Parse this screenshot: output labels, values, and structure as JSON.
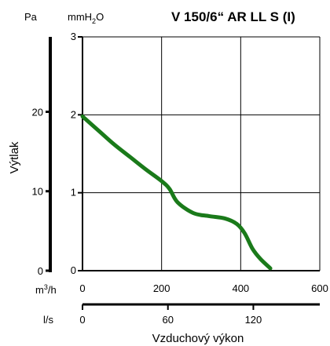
{
  "chart_data": {
    "type": "line",
    "title": "V 150/6“ AR LL S (I)",
    "xlabel": "Vzduchový výkon",
    "ylabel": "Výtlak",
    "axes": {
      "pa": {
        "label": "Pa",
        "ticks": [
          "0",
          "10",
          "20"
        ],
        "values": [
          0,
          10,
          20
        ]
      },
      "mmh2o": {
        "label": "mmH",
        "label_sub": "2",
        "label_tail": "O",
        "ticks": [
          "0",
          "1",
          "2",
          "3"
        ],
        "values": [
          0,
          1,
          2,
          3
        ]
      },
      "m3h": {
        "label": "m",
        "label_sup": "3",
        "label_tail": "/h",
        "ticks": [
          "0",
          "200",
          "400",
          "600"
        ],
        "values": [
          0,
          200,
          400,
          600
        ]
      },
      "ls": {
        "label": "l/s",
        "ticks": [
          "0",
          "60",
          "120"
        ],
        "values": [
          0,
          60,
          120
        ]
      }
    },
    "xlim": [
      0,
      600
    ],
    "ylim": [
      0,
      3
    ],
    "grid": true,
    "colors": {
      "curve": "#1a7a1a",
      "grid": "#000000"
    },
    "series": [
      {
        "x": [
          0,
          40,
          80,
          120,
          160,
          200,
          220,
          240,
          280,
          320,
          360,
          390,
          410,
          430,
          450,
          475
        ],
        "y": [
          1.98,
          1.8,
          1.62,
          1.46,
          1.3,
          1.15,
          1.05,
          0.88,
          0.74,
          0.7,
          0.67,
          0.6,
          0.48,
          0.28,
          0.15,
          0.03
        ]
      }
    ]
  }
}
